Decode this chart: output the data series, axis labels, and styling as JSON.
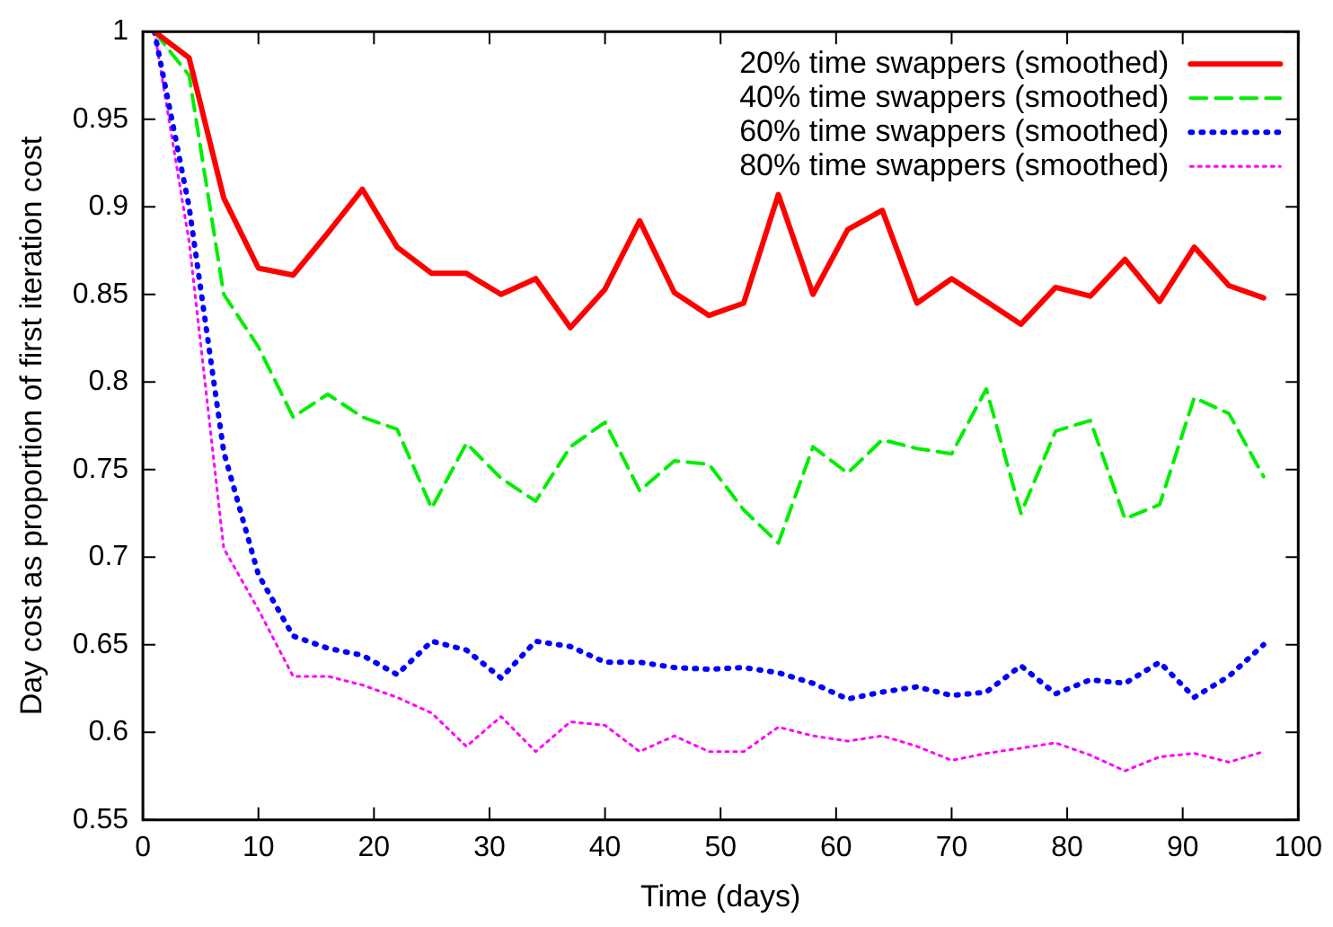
{
  "chart_data": {
    "type": "line",
    "xlabel": "Time (days)",
    "ylabel": "Day cost as proportion of first iteration cost",
    "x": [
      1,
      4,
      7,
      10,
      13,
      16,
      19,
      22,
      25,
      28,
      31,
      34,
      37,
      40,
      43,
      46,
      49,
      52,
      55,
      58,
      61,
      64,
      67,
      70,
      73,
      76,
      79,
      82,
      85,
      88,
      91,
      94,
      97
    ],
    "xlim": [
      0,
      100
    ],
    "xticks": [
      0,
      10,
      20,
      30,
      40,
      50,
      60,
      70,
      80,
      90,
      100
    ],
    "ylim": [
      0.55,
      1
    ],
    "yticks": [
      0.55,
      0.6,
      0.65,
      0.7,
      0.75,
      0.8,
      0.85,
      0.9,
      0.95,
      1
    ],
    "grid": false,
    "legend": "top right",
    "marker": "none",
    "series": [
      {
        "name": "20% time swappers (smoothed)",
        "color": "#ff0000",
        "line_style": "solid",
        "values": [
          1.0,
          0.985,
          0.905,
          0.865,
          0.861,
          0.885,
          0.91,
          0.877,
          0.862,
          0.862,
          0.85,
          0.859,
          0.831,
          0.853,
          0.892,
          0.851,
          0.838,
          0.845,
          0.907,
          0.85,
          0.887,
          0.898,
          0.845,
          0.859,
          0.846,
          0.833,
          0.854,
          0.849,
          0.87,
          0.846,
          0.877,
          0.855,
          0.848
        ]
      },
      {
        "name": "40% time swappers (smoothed)",
        "color": "#00ee00",
        "line_style": "dashed",
        "values": [
          1.0,
          0.975,
          0.85,
          0.82,
          0.78,
          0.793,
          0.78,
          0.773,
          0.728,
          0.765,
          0.745,
          0.732,
          0.763,
          0.777,
          0.738,
          0.755,
          0.753,
          0.727,
          0.708,
          0.763,
          0.748,
          0.767,
          0.762,
          0.759,
          0.796,
          0.725,
          0.772,
          0.778,
          0.722,
          0.73,
          0.791,
          0.782,
          0.746
        ]
      },
      {
        "name": "60% time swappers (smoothed)",
        "color": "#0000ff",
        "line_style": "dotted",
        "values": [
          1.0,
          0.9,
          0.76,
          0.69,
          0.655,
          0.648,
          0.644,
          0.633,
          0.652,
          0.647,
          0.631,
          0.652,
          0.649,
          0.64,
          0.64,
          0.637,
          0.636,
          0.637,
          0.634,
          0.628,
          0.619,
          0.623,
          0.626,
          0.621,
          0.623,
          0.638,
          0.622,
          0.63,
          0.628,
          0.64,
          0.62,
          0.632,
          0.65
        ]
      },
      {
        "name": "80% time swappers (smoothed)",
        "color": "#ff00ff",
        "line_style": "dotted",
        "values": [
          1.0,
          0.88,
          0.705,
          0.67,
          0.632,
          0.632,
          0.627,
          0.62,
          0.611,
          0.592,
          0.609,
          0.589,
          0.606,
          0.604,
          0.589,
          0.598,
          0.589,
          0.589,
          0.603,
          0.598,
          0.595,
          0.598,
          0.592,
          0.584,
          0.588,
          0.591,
          0.594,
          0.587,
          0.578,
          0.586,
          0.588,
          0.583,
          0.589
        ]
      }
    ]
  }
}
